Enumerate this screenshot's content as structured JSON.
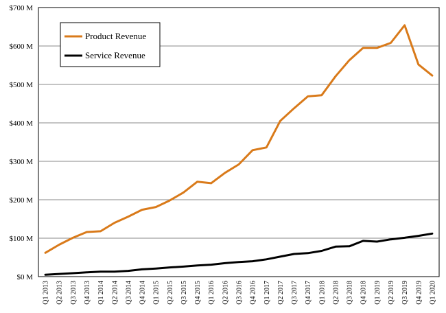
{
  "chart_data": {
    "type": "line",
    "title": "",
    "xlabel": "",
    "ylabel": "",
    "ylim": [
      0,
      700
    ],
    "y_ticks": [
      0,
      100,
      200,
      300,
      400,
      500,
      600,
      700
    ],
    "y_tick_labels": [
      "$0 M",
      "$100 M",
      "$200 M",
      "$300 M",
      "$400 M",
      "$500 M",
      "$600 M",
      "$700 M"
    ],
    "grid": "horizontal",
    "legend_position": "top-left",
    "categories": [
      "Q1 2013",
      "Q2 2013",
      "Q3 2013",
      "Q4 2013",
      "Q1 2014",
      "Q2 2014",
      "Q3 2014",
      "Q4 2014",
      "Q1 2015",
      "Q2 2015",
      "Q3 2015",
      "Q4 2015",
      "Q1 2016",
      "Q2 2016",
      "Q3 2016",
      "Q4 2016",
      "Q1 2017",
      "Q2 2017",
      "Q3 2017",
      "Q4 2017",
      "Q1 2018",
      "Q2 2018",
      "Q3 2018",
      "Q4 2018",
      "Q1 2019",
      "Q2 2019",
      "Q3 2019",
      "Q4 2019",
      "Q1 2020"
    ],
    "series": [
      {
        "name": "Product Revenue",
        "color": "#d97a1a",
        "values": [
          62,
          83,
          101,
          116,
          118,
          140,
          156,
          174,
          181,
          198,
          219,
          247,
          243,
          270,
          292,
          329,
          336,
          405,
          438,
          469,
          472,
          521,
          563,
          595,
          595,
          608,
          654,
          552,
          523
        ]
      },
      {
        "name": "Service Revenue",
        "color": "#000000",
        "values": [
          5,
          7,
          9,
          11,
          13,
          13,
          15,
          19,
          21,
          24,
          26,
          29,
          31,
          35,
          38,
          40,
          45,
          52,
          59,
          61,
          67,
          78,
          79,
          93,
          91,
          97,
          101,
          106,
          112
        ]
      }
    ]
  }
}
